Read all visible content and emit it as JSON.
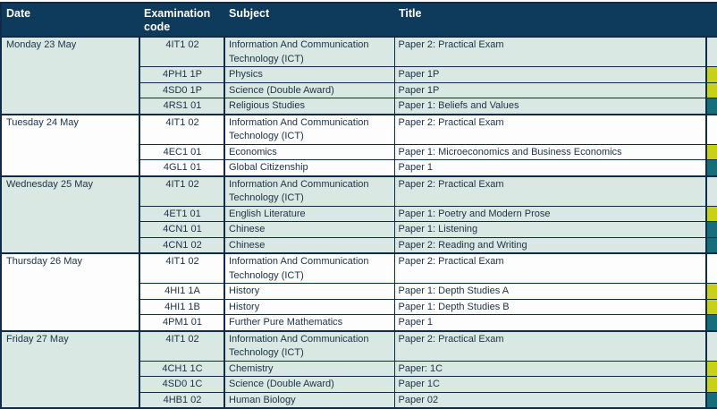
{
  "table": {
    "headers": [
      "Date",
      "Examination code",
      "Subject",
      "Title"
    ],
    "groups": [
      {
        "date": "Monday 23 May",
        "rows": [
          {
            "code": "4IT1 02",
            "subject": "Information And Communication Technology (ICT)",
            "title": "Paper 2: Practical Exam",
            "highlight": "none",
            "tall": true
          },
          {
            "code": "4PH1 1P",
            "subject": "Physics",
            "title": "Paper 1P",
            "highlight": "yellow",
            "tall": false
          },
          {
            "code": "4SD0 1P",
            "subject": "Science (Double Award)",
            "title": "Paper 1P",
            "highlight": "yellow",
            "tall": false
          },
          {
            "code": "4RS1 01",
            "subject": "Religious Studies",
            "title": "Paper 1: Beliefs and Values",
            "highlight": "teal",
            "tall": false
          }
        ]
      },
      {
        "date": "Tuesday 24 May",
        "rows": [
          {
            "code": "4IT1 02",
            "subject": "Information And Communication Technology (ICT)",
            "title": "Paper 2: Practical Exam",
            "highlight": "none",
            "tall": true
          },
          {
            "code": "4EC1 01",
            "subject": "Economics",
            "title": "Paper 1: Microeconomics and Business Economics",
            "highlight": "yellow",
            "tall": false
          },
          {
            "code": "4GL1 01",
            "subject": "Global Citizenship",
            "title": "Paper 1",
            "highlight": "teal",
            "tall": false
          }
        ]
      },
      {
        "date": "Wednesday 25 May",
        "rows": [
          {
            "code": "4IT1 02",
            "subject": "Information And Communication Technology (ICT)",
            "title": "Paper 2: Practical Exam",
            "highlight": "none",
            "tall": true
          },
          {
            "code": "4ET1 01",
            "subject": "English Literature",
            "title": "Paper 1: Poetry and Modern Prose",
            "highlight": "yellow",
            "tall": false
          },
          {
            "code": "4CN1 01",
            "subject": "Chinese",
            "title": "Paper 1: Listening",
            "highlight": "teal",
            "tall": false
          },
          {
            "code": "4CN1 02",
            "subject": "Chinese",
            "title": "Paper 2: Reading and Writing",
            "highlight": "teal",
            "tall": false
          }
        ]
      },
      {
        "date": "Thursday 26 May",
        "rows": [
          {
            "code": "4IT1 02",
            "subject": "Information And Communication Technology (ICT)",
            "title": "Paper 2: Practical Exam",
            "highlight": "none",
            "tall": true
          },
          {
            "code": "4HI1 1A",
            "subject": "History",
            "title": "Paper 1: Depth Studies A",
            "highlight": "yellow",
            "tall": false
          },
          {
            "code": "4HI1 1B",
            "subject": "History",
            "title": "Paper 1: Depth Studies B",
            "highlight": "yellow",
            "tall": false
          },
          {
            "code": "4PM1 01",
            "subject": "Further Pure Mathematics",
            "title": "Paper 1",
            "highlight": "teal",
            "tall": false
          }
        ]
      },
      {
        "date": "Friday 27 May",
        "rows": [
          {
            "code": "4IT1 02",
            "subject": "Information And Communication Technology (ICT)",
            "title": "Paper 2: Practical Exam",
            "highlight": "none",
            "tall": true
          },
          {
            "code": "4CH1 1C",
            "subject": "Chemistry",
            "title": "Paper: 1C",
            "highlight": "yellow",
            "tall": false
          },
          {
            "code": "4SD0 1C",
            "subject": "Science (Double Award)",
            "title": "Paper 1C",
            "highlight": "yellow",
            "tall": false
          },
          {
            "code": "4HB1 02",
            "subject": "Human Biology",
            "title": "Paper 02",
            "highlight": "teal",
            "tall": false
          }
        ]
      }
    ]
  },
  "colors": {
    "header_bg": "#0e3a5c",
    "header_text": "#ffffff",
    "border": "#0f2b47",
    "row_green": "#d9e8e2",
    "row_white": "#fcfdfc",
    "tag_yellow": "#c6d118",
    "tag_teal": "#166e7b",
    "text": "#1d3247",
    "page_bg": "#ffffff"
  }
}
